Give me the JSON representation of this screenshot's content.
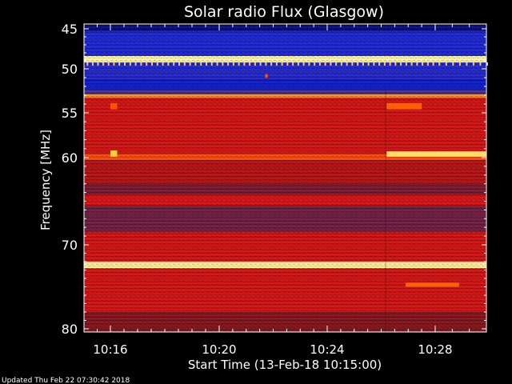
{
  "chart_data": {
    "type": "heatmap",
    "title": "Solar radio Flux (Glasgow)",
    "xlabel": "Start Time (13-Feb-18 10:15:00)",
    "ylabel": "Frequency [MHz]",
    "footer": "Updated Thu Feb 22 07:30:42 2018",
    "x_ticks": [
      "10:16",
      "10:20",
      "10:24",
      "10:28"
    ],
    "x_tick_minutes": [
      16,
      20,
      24,
      28
    ],
    "xlim_minutes": [
      15,
      29.5
    ],
    "y_ticks": [
      45,
      50,
      55,
      60,
      70,
      80
    ],
    "ylim": [
      44.5,
      80.5
    ],
    "colorscale": [
      "#00004a",
      "#1020e8",
      "#3a30a0",
      "#8a1010",
      "#e01010",
      "#ff5a00",
      "#ffd040",
      "#ffffc0"
    ],
    "bands": [
      {
        "f": [
          44.5,
          45.3
        ],
        "level": 0.05
      },
      {
        "f": [
          45.3,
          48.4
        ],
        "level": 0.18
      },
      {
        "f": [
          48.4,
          49.2
        ],
        "level": 0.97
      },
      {
        "f": [
          49.2,
          51.2
        ],
        "level": 0.2
      },
      {
        "f": [
          51.2,
          52.4
        ],
        "level": 0.12
      },
      {
        "f": [
          52.4,
          52.9
        ],
        "level": 0.3
      },
      {
        "f": [
          52.9,
          53.3
        ],
        "level": 0.78
      },
      {
        "f": [
          53.3,
          59.6
        ],
        "level": 0.55
      },
      {
        "f": [
          59.6,
          60.3
        ],
        "level": 0.68
      },
      {
        "f": [
          60.3,
          63.0
        ],
        "level": 0.5
      },
      {
        "f": [
          63.0,
          64.3
        ],
        "level": 0.4
      },
      {
        "f": [
          64.3,
          65.5
        ],
        "level": 0.56
      },
      {
        "f": [
          65.5,
          68.5
        ],
        "level": 0.38
      },
      {
        "f": [
          68.5,
          72.0
        ],
        "level": 0.55
      },
      {
        "f": [
          72.0,
          72.8
        ],
        "level": 0.95
      },
      {
        "f": [
          72.8,
          78.0
        ],
        "level": 0.55
      },
      {
        "f": [
          78.0,
          80.5
        ],
        "level": 0.42
      }
    ],
    "features": [
      {
        "t": [
          26.2,
          29.5
        ],
        "f": [
          59.3,
          59.9
        ],
        "level": 0.9
      },
      {
        "t": [
          26.2,
          27.5
        ],
        "f": [
          53.9,
          54.6
        ],
        "level": 0.72
      },
      {
        "t": [
          26.9,
          28.7
        ],
        "f": [
          74.5,
          75.0
        ],
        "level": 0.72
      },
      {
        "t": [
          16.0,
          16.25
        ],
        "f": [
          59.2,
          59.9
        ],
        "level": 0.85
      },
      {
        "t": [
          16.0,
          16.25
        ],
        "f": [
          53.9,
          54.6
        ],
        "level": 0.7
      },
      {
        "t": [
          21.7,
          21.8
        ],
        "f": [
          50.6,
          51.0
        ],
        "level": 0.7
      }
    ],
    "grid": false
  }
}
